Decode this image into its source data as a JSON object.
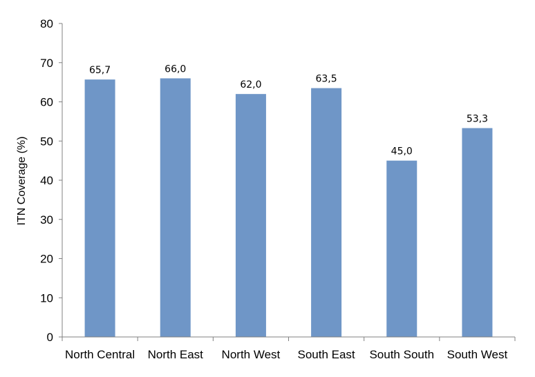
{
  "chart_data": {
    "type": "bar",
    "categories": [
      "North Central",
      "North East",
      "North West",
      "South East",
      "South South",
      "South West"
    ],
    "values": [
      65.7,
      66.0,
      62.0,
      63.5,
      45.0,
      53.3
    ],
    "data_labels": [
      "65,7",
      "66,0",
      "62,0",
      "63,5",
      "45,0",
      "53,3"
    ],
    "title": "",
    "xlabel": "",
    "ylabel": "ITN Coverage (%)",
    "ylim": [
      0,
      80
    ],
    "yticks": [
      0,
      10,
      20,
      30,
      40,
      50,
      60,
      70,
      80
    ],
    "grid": false,
    "legend": "none",
    "bar_color": "#6f96c7"
  }
}
